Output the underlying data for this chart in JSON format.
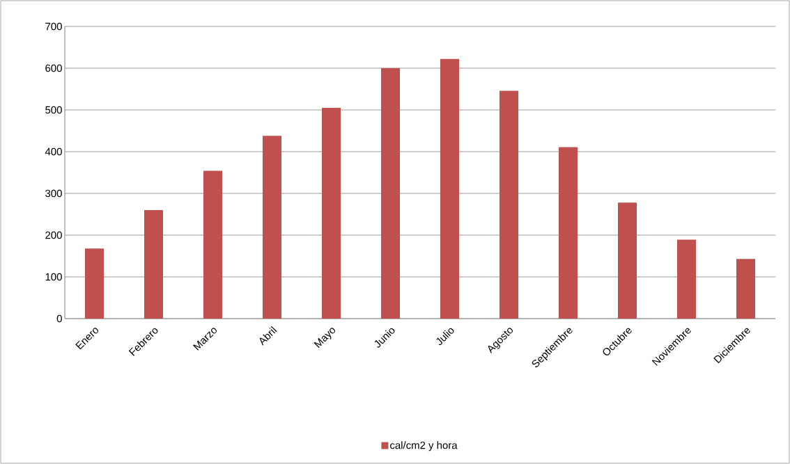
{
  "chart_data": {
    "type": "bar",
    "categories": [
      "Enero",
      "Febrero",
      "Marzo",
      "Abril",
      "Mayo",
      "Junio",
      "Julio",
      "Agosto",
      "Septiembre",
      "Octubre",
      "Noviembre",
      "Diciembre"
    ],
    "series": [
      {
        "name": "cal/cm2 y hora",
        "color": "#c0504d",
        "values": [
          168,
          260,
          354,
          438,
          505,
          600,
          622,
          546,
          411,
          278,
          189,
          143
        ]
      }
    ],
    "ylim": [
      0,
      700
    ],
    "yticks": [
      0,
      100,
      200,
      300,
      400,
      500,
      600,
      700
    ],
    "grid": "y",
    "legend": "bottom"
  }
}
